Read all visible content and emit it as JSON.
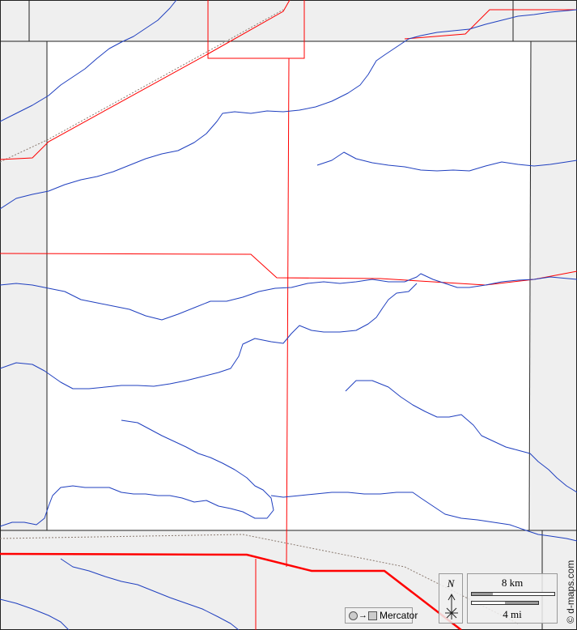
{
  "map": {
    "colors": {
      "rivers": "#1f3fbf",
      "roads": "#ff0000",
      "outside_area": "#efefef",
      "county_fill": "#ffffff",
      "borders": "#222222"
    },
    "north_label": "N",
    "scale": {
      "km_label": "8 km",
      "mi_label": "4 mi"
    },
    "projection": {
      "label": "Mercator",
      "icon": "circle-to-square-icon"
    },
    "credit": "© d-maps.com"
  }
}
